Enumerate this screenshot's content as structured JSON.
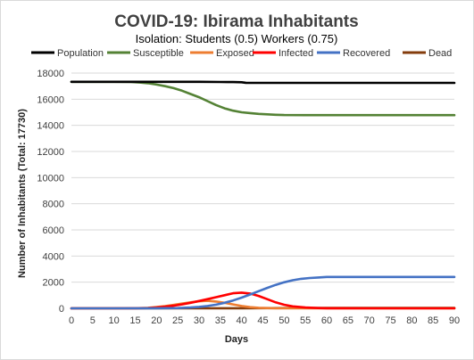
{
  "chart_data": {
    "type": "line",
    "title": "COVID-19: Ibirama Inhabitants",
    "subtitle": "Isolation: Students (0.5) Workers (0.75)",
    "xlabel": "Days",
    "ylabel": "Number of Inhabitants  (Total: 17730)",
    "xlim": [
      0,
      90
    ],
    "ylim": [
      0,
      18000
    ],
    "xticks": [
      "0",
      "5",
      "10",
      "15",
      "20",
      "25",
      "30",
      "35",
      "40",
      "45",
      "50",
      "55",
      "60",
      "65",
      "70",
      "75",
      "80",
      "85",
      "90"
    ],
    "yticks": [
      "0",
      "2000",
      "4000",
      "6000",
      "8000",
      "10000",
      "12000",
      "14000",
      "16000",
      "18000"
    ],
    "grid": "horizontal",
    "legend_position": "top",
    "series": [
      {
        "name": "Population",
        "color": "#000000",
        "x": [
          0,
          10,
          20,
          30,
          35,
          38,
          40,
          41,
          42,
          45,
          50,
          60,
          70,
          80,
          90
        ],
        "y": [
          17330,
          17330,
          17330,
          17330,
          17320,
          17310,
          17300,
          17260,
          17250,
          17250,
          17250,
          17250,
          17250,
          17250,
          17250
        ]
      },
      {
        "name": "Susceptible",
        "color": "#548235",
        "x": [
          0,
          5,
          10,
          14,
          16,
          18,
          20,
          22,
          24,
          26,
          28,
          30,
          32,
          34,
          36,
          38,
          40,
          42,
          44,
          46,
          48,
          50,
          55,
          60,
          70,
          80,
          90
        ],
        "y": [
          17330,
          17330,
          17330,
          17320,
          17280,
          17220,
          17120,
          17000,
          16850,
          16650,
          16400,
          16150,
          15850,
          15550,
          15300,
          15120,
          15000,
          14940,
          14880,
          14840,
          14810,
          14790,
          14780,
          14780,
          14780,
          14780,
          14780
        ]
      },
      {
        "name": "Exposed",
        "color": "#ed7d31",
        "x": [
          0,
          10,
          15,
          18,
          20,
          22,
          24,
          26,
          28,
          30,
          32,
          34,
          36,
          38,
          40,
          42,
          44,
          46,
          48,
          50,
          55,
          60,
          70,
          80,
          90
        ],
        "y": [
          0,
          0,
          5,
          40,
          100,
          170,
          260,
          360,
          460,
          540,
          570,
          520,
          420,
          300,
          180,
          90,
          40,
          20,
          10,
          5,
          0,
          0,
          0,
          0,
          0
        ]
      },
      {
        "name": "Infected",
        "color": "#ff0000",
        "x": [
          0,
          10,
          15,
          18,
          20,
          22,
          24,
          26,
          28,
          30,
          32,
          34,
          36,
          38,
          40,
          42,
          44,
          46,
          48,
          50,
          52,
          55,
          58,
          60,
          70,
          80,
          90
        ],
        "y": [
          0,
          0,
          5,
          20,
          60,
          120,
          200,
          300,
          420,
          560,
          700,
          850,
          1000,
          1150,
          1200,
          1130,
          950,
          700,
          460,
          270,
          150,
          60,
          20,
          5,
          0,
          0,
          0
        ]
      },
      {
        "name": "Recovered",
        "color": "#4472c4",
        "x": [
          0,
          10,
          20,
          25,
          28,
          30,
          32,
          34,
          36,
          38,
          40,
          42,
          44,
          46,
          48,
          50,
          52,
          54,
          56,
          58,
          60,
          65,
          70,
          80,
          90
        ],
        "y": [
          0,
          0,
          5,
          20,
          60,
          110,
          180,
          280,
          420,
          600,
          820,
          1060,
          1310,
          1560,
          1790,
          1990,
          2150,
          2260,
          2320,
          2360,
          2400,
          2400,
          2400,
          2400,
          2400
        ]
      },
      {
        "name": "Dead",
        "color": "#843c0c",
        "x": [
          0,
          20,
          30,
          35,
          40,
          45,
          50,
          55,
          60,
          70,
          80,
          90
        ],
        "y": [
          0,
          0,
          2,
          5,
          10,
          15,
          20,
          22,
          24,
          25,
          25,
          25
        ]
      }
    ]
  }
}
